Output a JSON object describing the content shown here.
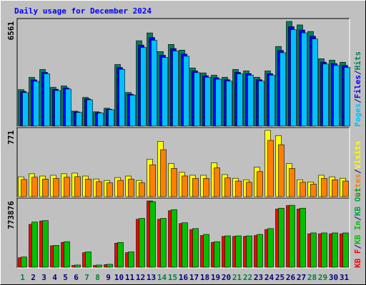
{
  "title": "Daily usage for December 2024",
  "legend_separator": "/",
  "chart_data": [
    {
      "type": "bar",
      "ylim": [
        0,
        6561
      ],
      "yticks": [
        6561
      ],
      "legend_reverse": true,
      "series": [
        {
          "name": "Hits",
          "color": "#00805c",
          "values": [
            2290,
            3056,
            3550,
            2430,
            2520,
            940,
            1800,
            900,
            1120,
            3860,
            2110,
            5350,
            5840,
            4670,
            5120,
            4760,
            3640,
            3330,
            3190,
            3060,
            3550,
            3460,
            3060,
            3460,
            4990,
            6561,
            6340,
            5930,
            4220,
            4130,
            4000
          ]
        },
        {
          "name": "Files",
          "color": "#0000ff",
          "values": [
            2180,
            2900,
            3370,
            2310,
            2390,
            890,
            1710,
            850,
            1060,
            3670,
            2000,
            5080,
            5550,
            4440,
            4860,
            4520,
            3460,
            3160,
            3030,
            2910,
            3370,
            3290,
            2910,
            3290,
            4740,
            6230,
            6020,
            5630,
            4010,
            3920,
            3800
          ]
        },
        {
          "name": "Pages",
          "color": "#00c0ff",
          "values": [
            2100,
            2810,
            3280,
            2230,
            2320,
            860,
            1650,
            820,
            1030,
            3560,
            1940,
            4930,
            5380,
            4300,
            4710,
            4380,
            3350,
            3060,
            2940,
            2820,
            3270,
            3190,
            2820,
            3190,
            4600,
            6040,
            5840,
            5460,
            3890,
            3800,
            3680
          ]
        }
      ]
    },
    {
      "type": "bar",
      "ylim": [
        0,
        771
      ],
      "yticks": [
        771
      ],
      "legend_reverse": true,
      "series": [
        {
          "name": "Visits",
          "color": "#ffff00",
          "values": [
            231,
            266,
            240,
            249,
            266,
            274,
            240,
            206,
            189,
            223,
            240,
            189,
            437,
            643,
            386,
            283,
            249,
            249,
            394,
            257,
            214,
            197,
            343,
            771,
            711,
            386,
            197,
            171,
            249,
            231,
            214
          ]
        },
        {
          "name": "Sites",
          "color": "#ff8000",
          "values": [
            200,
            226,
            204,
            212,
            226,
            233,
            204,
            175,
            161,
            190,
            204,
            161,
            371,
            546,
            328,
            241,
            212,
            212,
            335,
            218,
            182,
            167,
            292,
            655,
            604,
            328,
            167,
            145,
            212,
            196,
            182
          ]
        }
      ]
    },
    {
      "type": "bar",
      "ylim": [
        0,
        773876
      ],
      "yticks": [
        773876
      ],
      "legend_reverse": false,
      "categories": [
        "1",
        "2",
        "3",
        "4",
        "5",
        "6",
        "7",
        "8",
        "9",
        "10",
        "11",
        "12",
        "13",
        "14",
        "15",
        "16",
        "17",
        "18",
        "19",
        "20",
        "21",
        "22",
        "23",
        "24",
        "25",
        "26",
        "27",
        "28",
        "29",
        "30",
        "31"
      ],
      "category_colors": [
        "#008040",
        "#000080",
        "#000080",
        "#000080",
        "#000080",
        "#000080",
        "#008040",
        "#008040",
        "#000080",
        "#000080",
        "#000080",
        "#000080",
        "#000080",
        "#008040",
        "#008040",
        "#000080",
        "#000080",
        "#000080",
        "#000080",
        "#000080",
        "#008040",
        "#008040",
        "#000080",
        "#000080",
        "#000080",
        "#000080",
        "#000080",
        "#008040",
        "#008040",
        "#000080",
        "#000080"
      ],
      "series": [
        {
          "name": "KB F",
          "color": "#ff0000",
          "values": [
            110000,
            500000,
            540000,
            250000,
            290000,
            20000,
            170000,
            20000,
            30000,
            280000,
            170000,
            560000,
            773876,
            560000,
            660000,
            510000,
            440000,
            370000,
            290000,
            360000,
            360000,
            360000,
            370000,
            440000,
            680000,
            720000,
            680000,
            390000,
            390000,
            390000,
            390000
          ]
        },
        {
          "name": "KB In",
          "color": "#00c000",
          "values": [
            119000,
            527000,
            544000,
            255000,
            298000,
            25500,
            179000,
            25500,
            34000,
            289000,
            179000,
            570000,
            765000,
            570000,
            672000,
            519000,
            451000,
            383000,
            298000,
            366000,
            366000,
            366000,
            383000,
            451000,
            689000,
            723000,
            689000,
            400000,
            400000,
            400000,
            400000
          ]
        }
      ],
      "extra_legend": [
        {
          "label": "KB Out",
          "color": "#00a040"
        }
      ]
    }
  ]
}
